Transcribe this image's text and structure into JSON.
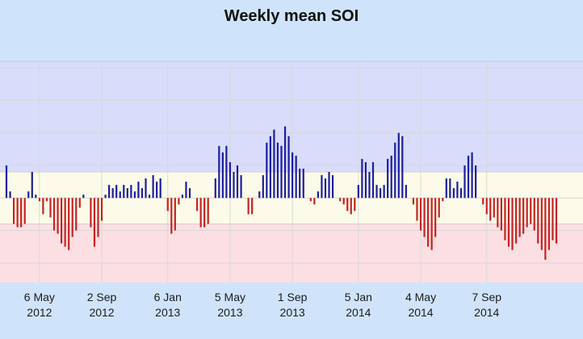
{
  "chart_data": {
    "type": "bar",
    "title": "Weekly mean SOI",
    "xlabel": "",
    "ylabel": "",
    "x_tick_labels": [
      {
        "date": "6 May",
        "year": "2012"
      },
      {
        "date": "2 Sep",
        "year": "2012"
      },
      {
        "date": "6 Jan",
        "year": "2013"
      },
      {
        "date": "5 May",
        "year": "2013"
      },
      {
        "date": "1 Sep",
        "year": "2013"
      },
      {
        "date": "5 Jan",
        "year": "2014"
      },
      {
        "date": "4 May",
        "year": "2014"
      },
      {
        "date": "7 Sep",
        "year": "2014"
      }
    ],
    "x_tick_dates": [
      "2012-05-06",
      "2012-09-02",
      "2013-01-06",
      "2013-05-05",
      "2013-09-01",
      "2014-01-05",
      "2014-05-04",
      "2014-09-07"
    ],
    "first_bar_week": "2012-03-04",
    "week_step_days": 7,
    "ylim": [
      -26,
      42
    ],
    "bands": [
      {
        "from": 8,
        "to": 42,
        "color": "#d9dcfb"
      },
      {
        "from": -8,
        "to": 8,
        "color": "#fcfbe9"
      },
      {
        "from": -26,
        "to": -8,
        "color": "#fcdfe3"
      }
    ],
    "grid": true,
    "positive_color": "#1c1f9e",
    "negative_color": "#c42424",
    "series": [
      {
        "values": [
          10,
          2,
          -8,
          -9,
          -9,
          -8,
          2,
          8,
          1,
          -1,
          -5,
          -1,
          -6,
          -10,
          -11,
          -14,
          -15,
          -16,
          -12,
          -10,
          -3,
          1,
          0,
          -9,
          -15,
          -12,
          -7,
          1,
          4,
          3,
          4,
          2,
          4,
          3,
          4,
          2,
          5,
          3,
          6,
          1,
          7,
          5,
          6,
          0,
          -4,
          -11,
          -10,
          -2,
          1,
          5,
          3,
          0,
          -4,
          -9,
          -9,
          -8,
          0,
          6,
          16,
          14,
          16,
          11,
          8,
          10,
          7,
          0,
          -5,
          -5,
          0,
          2,
          7,
          17,
          19,
          21,
          17,
          16,
          22,
          19,
          14,
          13,
          9,
          9,
          0,
          -1,
          -2,
          2,
          7,
          6,
          8,
          7,
          0,
          -1,
          -2,
          -4,
          -5,
          -4,
          4,
          12,
          11,
          8,
          11,
          4,
          3,
          4,
          12,
          13,
          17,
          20,
          19,
          4,
          0,
          -2,
          -7,
          -10,
          -12,
          -15,
          -16,
          -12,
          -6,
          -1,
          6,
          6,
          3,
          5,
          3,
          10,
          13,
          14,
          10,
          0,
          -2,
          -5,
          -7,
          -6,
          -9,
          -10,
          -13,
          -15,
          -16,
          -14,
          -12,
          -11,
          -9,
          -8,
          -10,
          -14,
          -16,
          -19,
          -16,
          -13,
          -14
        ]
      }
    ]
  }
}
